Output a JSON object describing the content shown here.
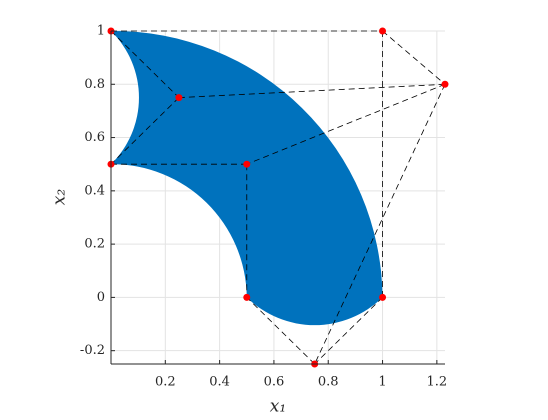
{
  "chart_data": {
    "type": "nurbs-patch",
    "xlabel": "x₁",
    "ylabel": "x₂",
    "xlim": [
      0,
      1.23
    ],
    "ylim": [
      -0.25,
      1
    ],
    "xticks": [
      0.2,
      0.4,
      0.6,
      0.8,
      1,
      1.2
    ],
    "yticks": [
      -0.2,
      0,
      0.2,
      0.4,
      0.6,
      0.8,
      1
    ],
    "grid": true,
    "fill_color": "#0072bd",
    "point_color": "#ff0000",
    "net_color": "#000000",
    "control_net": {
      "x": [
        [
          0,
          0.25,
          0
        ],
        [
          1,
          1.23,
          0.5
        ],
        [
          1,
          0.75,
          0.5
        ]
      ],
      "y": [
        [
          1,
          0.75,
          0.5
        ],
        [
          1,
          0.8,
          0.5
        ],
        [
          0,
          -0.25,
          0
        ]
      ]
    }
  }
}
